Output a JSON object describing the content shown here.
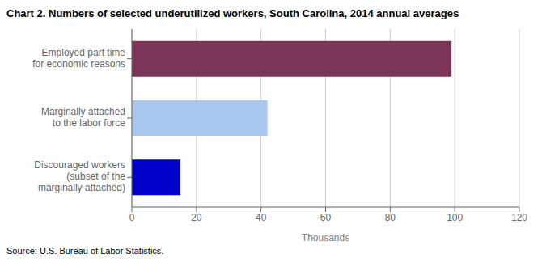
{
  "chart_data": {
    "type": "bar",
    "orientation": "horizontal",
    "title": "Chart 2. Numbers of selected underutilized workers, South Carolina, 2014 annual averages",
    "categories": [
      "Discouraged workers\n(subset of the\nmarginally attached)",
      "Marginally attached\nto the labor force",
      "Employed part time\nfor economic reasons"
    ],
    "values": [
      15,
      42,
      99
    ],
    "colors": [
      "#0000cc",
      "#a8c8f0",
      "#7b3558"
    ],
    "xlabel": "Thousands",
    "xlim": [
      0,
      120
    ],
    "xticks": [
      0,
      20,
      40,
      60,
      80,
      100,
      120
    ],
    "grid": true,
    "annotations": [
      "Source: U.S. Bureau of Labor Statistics."
    ]
  }
}
